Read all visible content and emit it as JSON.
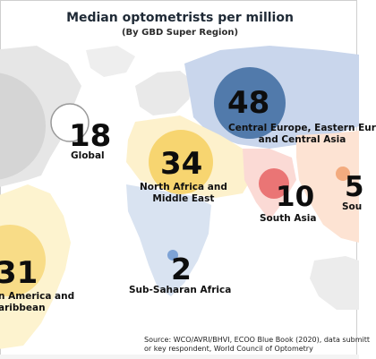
{
  "title": "Median optometrists per million",
  "subtitle": "(By GBD Super Region)",
  "regions": [
    {
      "id": "global",
      "value": "18",
      "label": "Global",
      "color": "#ffffff"
    },
    {
      "id": "central-europe",
      "value": "48",
      "label": "Central Europe, Eastern Eur\nand Central Asia",
      "color": "#3c6aa0"
    },
    {
      "id": "north-africa",
      "value": "34",
      "label": "North Africa and\nMiddle East",
      "color": "#f5d36a"
    },
    {
      "id": "south-asia",
      "value": "10",
      "label": "South Asia",
      "color": "#e8696a"
    },
    {
      "id": "southeast-asia",
      "value": "5",
      "label": "Sou",
      "color": "#f2a87a"
    },
    {
      "id": "latin-america",
      "value": "31",
      "label": "n America and\naribbean",
      "color": "#f5d36a"
    },
    {
      "id": "sub-saharan",
      "value": "2",
      "label": "Sub-Saharan Africa",
      "color": "#8aaedc"
    }
  ],
  "source": "Source: WCO/AVRI/BHVI, ECOO Blue Book (2020), data submitt\nor key respondent, World Council of Optometry"
}
